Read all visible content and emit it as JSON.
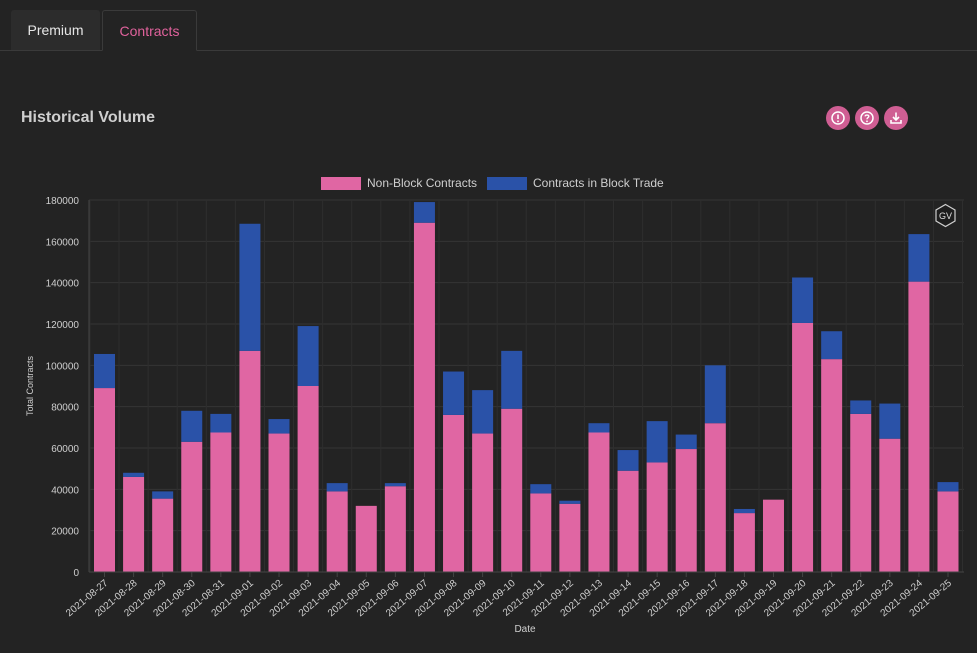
{
  "tabs": [
    {
      "label": "Premium",
      "active": false
    },
    {
      "label": "Contracts",
      "active": true
    }
  ],
  "section": {
    "title": "Historical Volume",
    "icons": [
      "info-icon",
      "help-icon",
      "download-icon"
    ],
    "badge": "GV"
  },
  "colors": {
    "accent": "#e0629c",
    "non_block": "#e066a3",
    "block": "#2a52a8",
    "icon_button": "#cf5e93"
  },
  "chart_data": {
    "type": "bar",
    "stacked": true,
    "xlabel": "Date",
    "ylabel": "Total Contracts",
    "ylim": [
      0,
      180000
    ],
    "yticks": [
      0,
      20000,
      40000,
      60000,
      80000,
      100000,
      120000,
      140000,
      160000,
      180000
    ],
    "legend_position": "top-center",
    "grid": true,
    "categories": [
      "2021-08-27",
      "2021-08-28",
      "2021-08-29",
      "2021-08-30",
      "2021-08-31",
      "2021-09-01",
      "2021-09-02",
      "2021-09-03",
      "2021-09-04",
      "2021-09-05",
      "2021-09-06",
      "2021-09-07",
      "2021-09-08",
      "2021-09-09",
      "2021-09-10",
      "2021-09-11",
      "2021-09-12",
      "2021-09-13",
      "2021-09-14",
      "2021-09-15",
      "2021-09-16",
      "2021-09-17",
      "2021-09-18",
      "2021-09-19",
      "2021-09-20",
      "2021-09-21",
      "2021-09-22",
      "2021-09-23",
      "2021-09-24",
      "2021-09-25"
    ],
    "series": [
      {
        "name": "Non-Block Contracts",
        "color": "#e066a3",
        "values": [
          89000,
          46000,
          35500,
          63000,
          67500,
          107000,
          67000,
          90000,
          39000,
          32000,
          41500,
          169000,
          76000,
          67000,
          79000,
          38000,
          33000,
          67500,
          49000,
          53000,
          59500,
          72000,
          28500,
          35000,
          120500,
          103000,
          76500,
          64500,
          140500,
          39000
        ]
      },
      {
        "name": "Contracts in Block Trade",
        "color": "#2a52a8",
        "values": [
          16500,
          2000,
          3500,
          15000,
          9000,
          61500,
          7000,
          29000,
          4000,
          0,
          1500,
          10000,
          21000,
          21000,
          28000,
          4500,
          1500,
          4500,
          10000,
          20000,
          7000,
          28000,
          2000,
          0,
          22000,
          13500,
          6500,
          17000,
          23000,
          4500
        ]
      }
    ]
  }
}
